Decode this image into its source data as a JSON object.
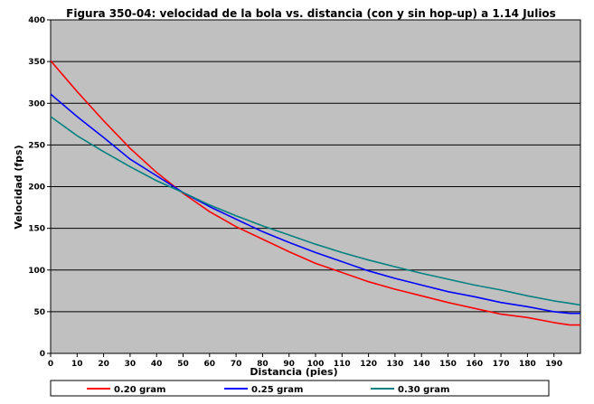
{
  "chart_data": {
    "type": "line",
    "title": "Figura 350-04: velocidad de la bola vs. distancia (con y sin hop-up) a 1.14 Julios",
    "xlabel": "Distancia (pies)",
    "ylabel": "Velocidad (fps)",
    "xlim": [
      0,
      200
    ],
    "ylim": [
      0,
      400
    ],
    "x_ticks": [
      0,
      10,
      20,
      30,
      40,
      50,
      60,
      70,
      80,
      90,
      100,
      110,
      120,
      130,
      140,
      150,
      160,
      170,
      180,
      190
    ],
    "y_ticks": [
      0,
      50,
      100,
      150,
      200,
      250,
      300,
      350,
      400
    ],
    "grid": "horizontal",
    "plot_background": "#c0c0c0",
    "legend_position": "bottom",
    "x": [
      0,
      10,
      20,
      30,
      40,
      50,
      60,
      70,
      80,
      90,
      100,
      110,
      120,
      130,
      140,
      150,
      160,
      170,
      180,
      190,
      196,
      200
    ],
    "series": [
      {
        "name": "0.20 gram",
        "color": "#ff0000",
        "values": [
          351,
          314,
          279,
          246,
          217,
          192,
          170,
          152,
          137,
          122,
          108,
          97,
          86,
          77,
          69,
          61,
          54,
          47,
          43,
          37,
          34,
          34
        ]
      },
      {
        "name": "0.25 gram",
        "color": "#0000ff",
        "values": [
          311,
          284,
          259,
          233,
          213,
          193,
          176,
          161,
          146,
          133,
          121,
          110,
          99,
          90,
          82,
          74,
          68,
          61,
          56,
          50,
          48,
          48
        ]
      },
      {
        "name": "0.30 gram",
        "color": "#008080",
        "values": [
          284,
          261,
          242,
          224,
          207,
          193,
          178,
          165,
          153,
          142,
          131,
          121,
          112,
          104,
          96,
          89,
          82,
          76,
          69,
          63,
          60,
          58
        ]
      }
    ]
  }
}
